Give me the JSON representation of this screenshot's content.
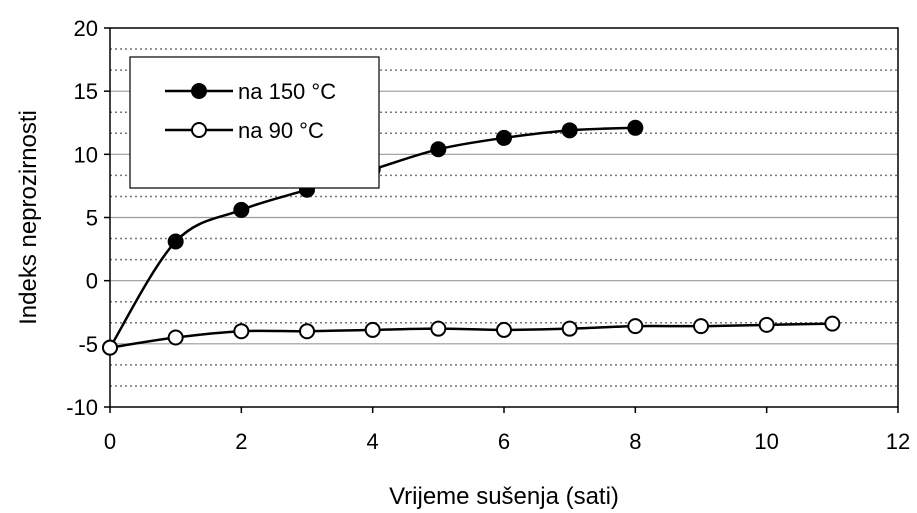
{
  "chart_data": {
    "type": "line",
    "xlabel": "Vrijeme sušenja (sati)",
    "ylabel": "Indeks neprozirnosti",
    "xlim": [
      0,
      12
    ],
    "ylim": [
      -10,
      20
    ],
    "x_ticks": [
      0,
      2,
      4,
      6,
      8,
      10,
      12
    ],
    "y_ticks": [
      -10,
      -5,
      0,
      5,
      10,
      15,
      20
    ],
    "x_tick_labels": [
      "0",
      "2",
      "4",
      "6",
      "8",
      "10",
      "12"
    ],
    "y_tick_labels": [
      "-10",
      "-5",
      "0",
      "5",
      "10",
      "15",
      "20"
    ],
    "grid": "horizontal, solid at major ticks and dotted between",
    "legend_position": "top-left",
    "series": [
      {
        "name": "na 150 °C",
        "marker": "filled-circle",
        "color": "#000000",
        "x": [
          0,
          1,
          2,
          3,
          4,
          5,
          6,
          7,
          8
        ],
        "y": [
          -5.3,
          3.1,
          5.6,
          7.2,
          8.8,
          10.4,
          11.3,
          11.9,
          12.1
        ]
      },
      {
        "name": "na 90 °C",
        "marker": "open-circle",
        "color": "#000000",
        "x": [
          0,
          1,
          2,
          3,
          4,
          5,
          6,
          7,
          8,
          9,
          10,
          11
        ],
        "y": [
          -5.3,
          -4.5,
          -4.0,
          -4.0,
          -3.9,
          -3.8,
          -3.9,
          -3.8,
          -3.6,
          -3.6,
          -3.5,
          -3.4
        ]
      }
    ]
  }
}
